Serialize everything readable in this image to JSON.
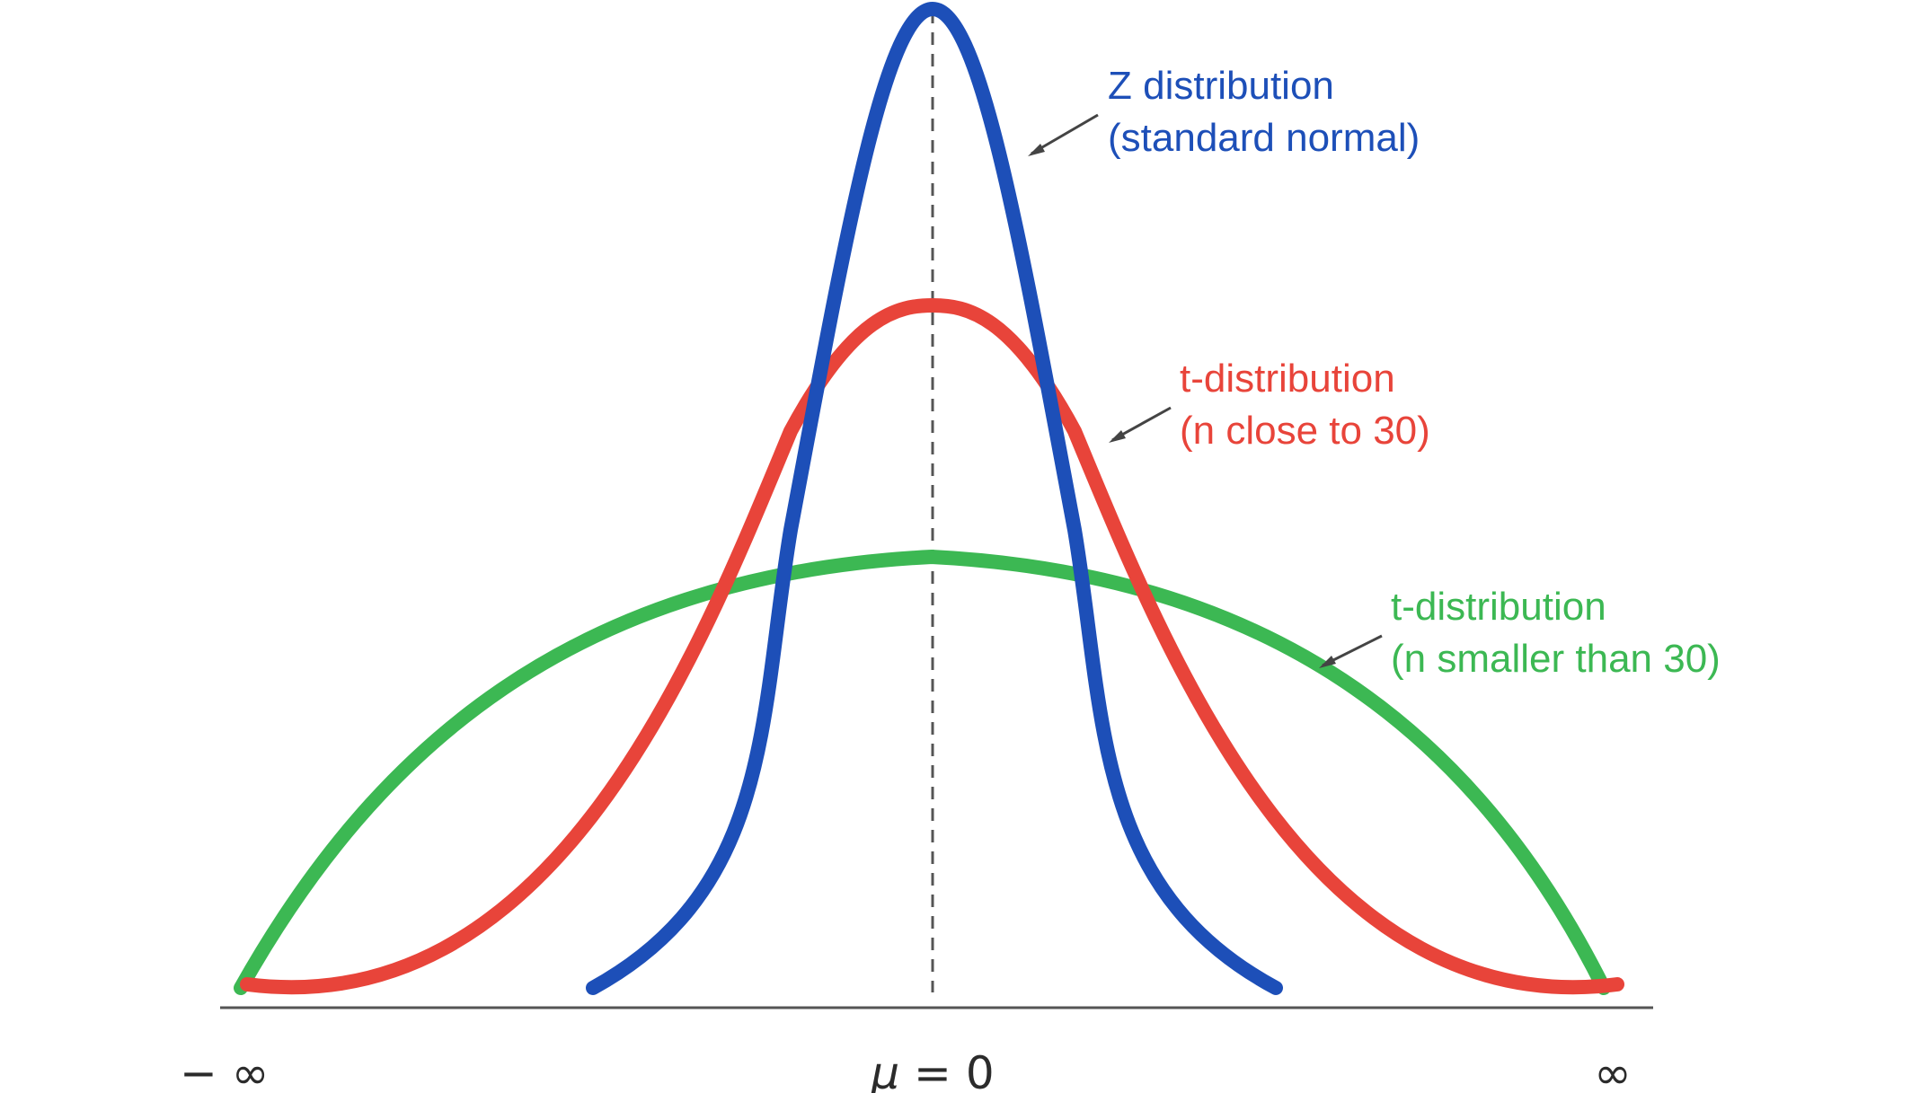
{
  "diagram": {
    "colors": {
      "z": "#1d4fb8",
      "t30": "#e8443a",
      "tsmall": "#3cb853",
      "axis": "#555555",
      "arrow": "#444444",
      "mean_line": "#555555"
    },
    "curves": [
      {
        "id": "z",
        "label_line1": "Z distribution",
        "label_line2": "(standard normal)"
      },
      {
        "id": "t30",
        "label_line1": "t-distribution",
        "label_line2": "(n close to 30)"
      },
      {
        "id": "tsmall",
        "label_line1": "t-distribution",
        "label_line2": "(n smaller than 30)"
      }
    ],
    "axis_labels": {
      "left": "− ∞",
      "center_symbol": "μ",
      "center_rest": " = 0",
      "right": "∞"
    }
  }
}
